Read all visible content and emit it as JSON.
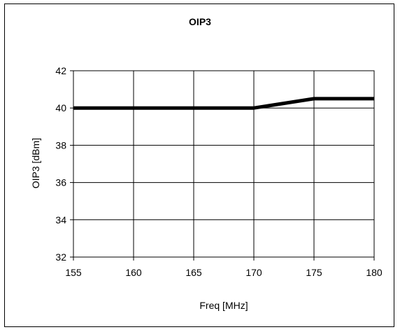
{
  "chart_data": {
    "type": "line",
    "title": "OIP3",
    "xlabel": "Freq [MHz]",
    "ylabel": "OIP3 [dBm]",
    "x": [
      155,
      160,
      165,
      170,
      175,
      180
    ],
    "xticks": [
      "155",
      "160",
      "165",
      "170",
      "175",
      "180"
    ],
    "yticks": [
      "32",
      "34",
      "36",
      "38",
      "40",
      "42"
    ],
    "xlim": [
      155,
      180
    ],
    "ylim": [
      32,
      42
    ],
    "grid": true,
    "legend": "none",
    "series": [
      {
        "values": [
          40,
          40,
          40,
          40,
          40.5,
          40.5
        ],
        "color": "#000000"
      }
    ]
  }
}
